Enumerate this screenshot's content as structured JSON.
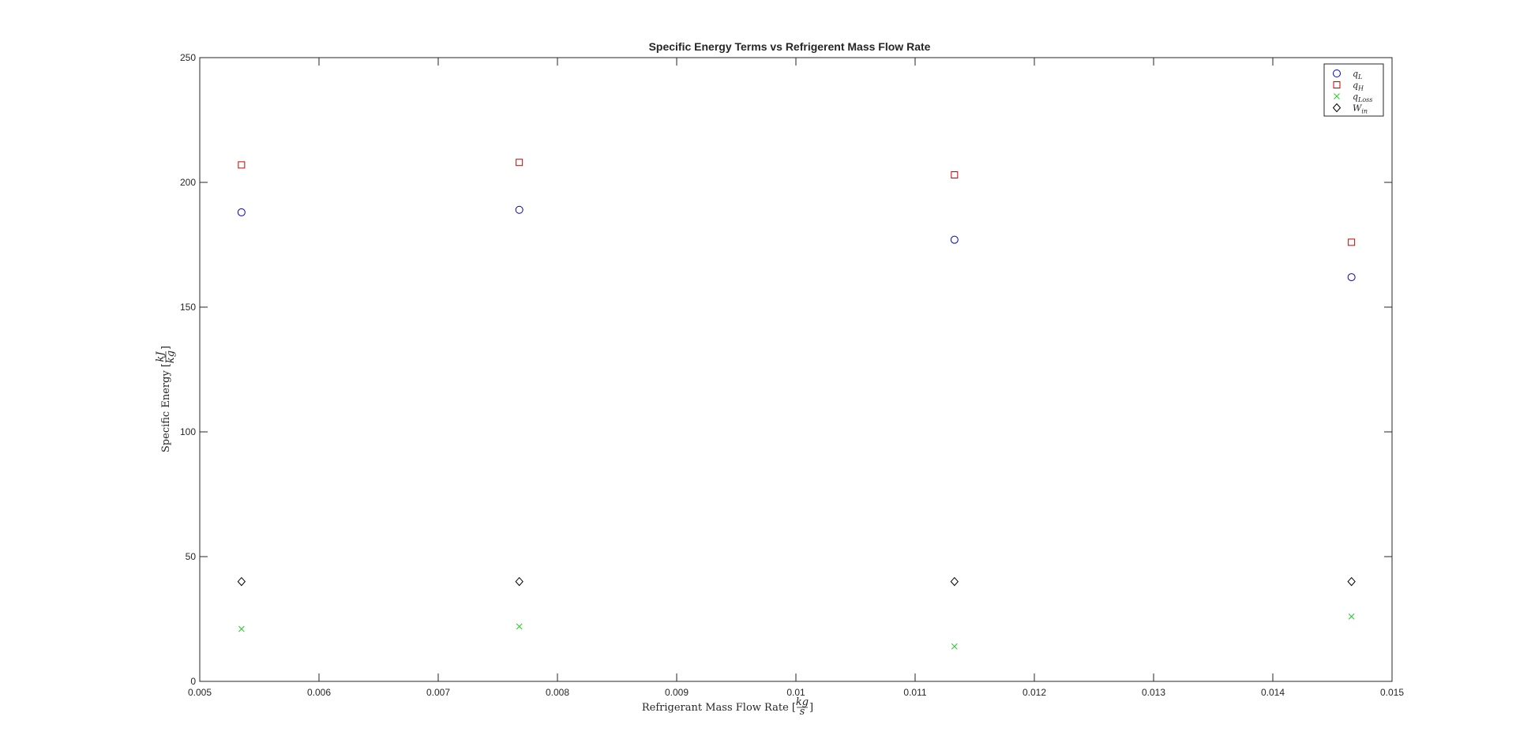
{
  "chart_data": {
    "type": "scatter",
    "title": "Specific Energy Terms vs Refrigerent Mass Flow Rate",
    "xlabel": "Refrigerant Mass Flow Rate [kg/s]",
    "ylabel": "Specific Energy [kJ/kg]",
    "xlim": [
      0.005,
      0.015
    ],
    "ylim": [
      0,
      250
    ],
    "xticks": [
      "0.005",
      "0.006",
      "0.007",
      "0.008",
      "0.009",
      "0.01",
      "0.011",
      "0.012",
      "0.013",
      "0.014",
      "0.015"
    ],
    "yticks": [
      "0",
      "50",
      "100",
      "150",
      "200",
      "250"
    ],
    "grid": false,
    "legend_position": "top-right",
    "x": [
      0.00535,
      0.00768,
      0.01133,
      0.01466
    ],
    "series": [
      {
        "name": "qL",
        "sub": "L",
        "marker": "circle",
        "color": "#0000cc",
        "values": [
          188,
          189,
          177,
          162
        ]
      },
      {
        "name": "qH",
        "sub": "H",
        "marker": "square",
        "color": "#cc0000",
        "values": [
          207,
          208,
          203,
          176
        ]
      },
      {
        "name": "qLoss",
        "sub": "Loss",
        "marker": "x",
        "color": "#22cc22",
        "values": [
          21,
          22,
          14,
          26
        ]
      },
      {
        "name": "Win",
        "sub": "in",
        "marker": "diamond",
        "color": "#000000",
        "values": [
          40,
          40,
          40,
          40
        ]
      }
    ]
  }
}
